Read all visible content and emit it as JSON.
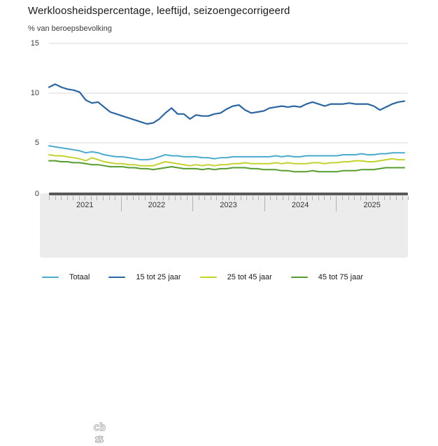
{
  "header": {
    "title": "Werkloosheidspercentage, leeftijd, seizoengecorrigeerd",
    "subtitle": "% van beroepsbevolking"
  },
  "colors": {
    "grid": "#d9d9d9",
    "axis_bar": "#595959",
    "timeline_panel": "#ececec",
    "tick": "#b0b0b0",
    "text": "#3c3c3c",
    "logo": "#a6a6a6"
  },
  "footer": {
    "logo_name": "cbs-logo"
  },
  "chart_data": {
    "type": "line",
    "title": "Werkloosheidspercentage, leeftijd, seizoengecorrigeerd",
    "ylabel": "% van beroepsbevolking",
    "xlabel": "",
    "ylim": [
      0,
      15
    ],
    "y_ticks": [
      0,
      5,
      10,
      15
    ],
    "grid": "horizontal",
    "legend_position": "bottom",
    "x_tick_years": [
      "2021",
      "2022",
      "2023",
      "2024",
      "2025"
    ],
    "x": [
      "2021-01",
      "2021-02",
      "2021-03",
      "2021-04",
      "2021-05",
      "2021-06",
      "2021-07",
      "2021-08",
      "2021-09",
      "2021-10",
      "2021-11",
      "2021-12",
      "2022-01",
      "2022-02",
      "2022-03",
      "2022-04",
      "2022-05",
      "2022-06",
      "2022-07",
      "2022-08",
      "2022-09",
      "2022-10",
      "2022-11",
      "2022-12",
      "2023-01",
      "2023-02",
      "2023-03",
      "2023-04",
      "2023-05",
      "2023-06",
      "2023-07",
      "2023-08",
      "2023-09",
      "2023-10",
      "2023-11",
      "2023-12",
      "2024-01",
      "2024-02",
      "2024-03",
      "2024-04",
      "2024-05",
      "2024-06",
      "2024-07",
      "2024-08",
      "2024-09",
      "2024-10",
      "2024-11",
      "2024-12",
      "2025-01",
      "2025-02",
      "2025-03",
      "2025-04",
      "2025-05",
      "2025-06",
      "2025-07",
      "2025-08",
      "2025-09",
      "2025-10",
      "2025-11"
    ],
    "series": [
      {
        "name": "Totaal",
        "color": "#4aabcd",
        "values": [
          4.7,
          4.6,
          4.5,
          4.4,
          4.3,
          4.2,
          4.0,
          4.1,
          4.0,
          3.8,
          3.7,
          3.6,
          3.6,
          3.5,
          3.4,
          3.3,
          3.3,
          3.4,
          3.6,
          3.8,
          3.7,
          3.7,
          3.6,
          3.6,
          3.6,
          3.5,
          3.5,
          3.4,
          3.5,
          3.5,
          3.6,
          3.6,
          3.6,
          3.6,
          3.6,
          3.6,
          3.6,
          3.7,
          3.6,
          3.7,
          3.6,
          3.6,
          3.7,
          3.7,
          3.7,
          3.7,
          3.7,
          3.7,
          3.8,
          3.8,
          3.8,
          3.9,
          3.8,
          3.8,
          3.9,
          3.9,
          4.0,
          4.0,
          4.0
        ]
      },
      {
        "name": "15 tot 25 jaar",
        "color": "#2b66a3",
        "values": [
          10.6,
          10.9,
          10.6,
          10.4,
          10.3,
          10.1,
          9.3,
          9.0,
          9.1,
          8.6,
          8.1,
          7.9,
          7.7,
          7.5,
          7.3,
          7.1,
          6.9,
          7.0,
          7.4,
          8.0,
          8.5,
          7.9,
          7.9,
          7.4,
          7.8,
          7.7,
          7.7,
          7.9,
          8.0,
          8.4,
          8.7,
          8.8,
          8.3,
          8.0,
          8.1,
          8.2,
          8.5,
          8.6,
          8.7,
          8.6,
          8.7,
          8.6,
          8.9,
          9.1,
          8.9,
          8.7,
          8.9,
          8.9,
          8.9,
          9.0,
          8.9,
          8.9,
          8.9,
          8.7,
          8.3,
          8.6,
          8.9,
          9.1,
          9.2
        ]
      },
      {
        "name": "25 tot 45 jaar",
        "color": "#c3d22d",
        "values": [
          3.8,
          3.7,
          3.7,
          3.6,
          3.5,
          3.4,
          3.2,
          3.5,
          3.3,
          3.1,
          3.0,
          2.9,
          2.9,
          2.8,
          2.8,
          2.7,
          2.7,
          2.7,
          2.9,
          3.1,
          3.0,
          2.9,
          2.8,
          2.7,
          2.8,
          2.7,
          2.8,
          2.7,
          2.8,
          2.8,
          2.9,
          2.9,
          3.0,
          2.9,
          2.9,
          2.9,
          2.9,
          3.0,
          2.9,
          3.0,
          2.9,
          2.9,
          2.9,
          3.0,
          3.0,
          2.9,
          3.0,
          3.0,
          3.1,
          3.1,
          3.2,
          3.2,
          3.1,
          3.1,
          3.2,
          3.3,
          3.4,
          3.3,
          3.3
        ]
      },
      {
        "name": "45 tot 75 jaar",
        "color": "#569d2f",
        "values": [
          3.2,
          3.2,
          3.1,
          3.1,
          3.0,
          3.0,
          2.9,
          2.8,
          2.8,
          2.7,
          2.6,
          2.6,
          2.6,
          2.5,
          2.5,
          2.4,
          2.4,
          2.3,
          2.4,
          2.5,
          2.6,
          2.5,
          2.4,
          2.4,
          2.4,
          2.3,
          2.4,
          2.3,
          2.4,
          2.4,
          2.5,
          2.5,
          2.5,
          2.4,
          2.4,
          2.3,
          2.3,
          2.3,
          2.2,
          2.2,
          2.1,
          2.1,
          2.1,
          2.2,
          2.1,
          2.1,
          2.1,
          2.1,
          2.2,
          2.2,
          2.2,
          2.3,
          2.3,
          2.3,
          2.4,
          2.5,
          2.5,
          2.5,
          2.5
        ]
      }
    ]
  }
}
